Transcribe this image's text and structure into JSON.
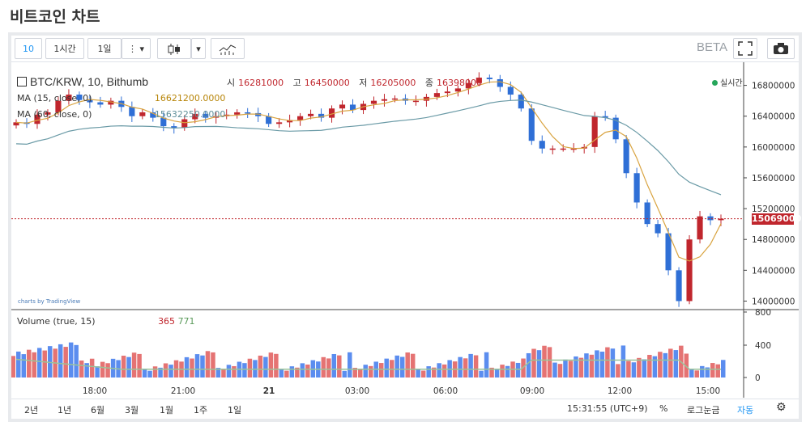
{
  "page": {
    "title": "비트코인 차트"
  },
  "toolbar": {
    "interval": "10",
    "range_1h": "1시간",
    "range_1d": "1일",
    "beta": "BETA"
  },
  "legend": {
    "symbol": "BTC/KRW, 10, Bithumb",
    "open_label": "시",
    "open": "16281000",
    "high_label": "고",
    "high": "16450000",
    "low_label": "저",
    "low": "16205000",
    "close_label": "종",
    "close": "16398000",
    "ma15": "MA (15, close, 0)",
    "ma15_value": "16621200.0000",
    "ma60": "MA (60, close, 0)",
    "ma60_value": "15632250.0000",
    "live": "실시간",
    "volume": "Volume (true, 15)",
    "vol_a": "365",
    "vol_b": "771",
    "tv": "charts by TradingView"
  },
  "colors": {
    "up": "#c0262d",
    "down": "#2f6fd6",
    "ma15": "#d9a441",
    "ma60": "#6a9aa6",
    "vol_up": "#e57373",
    "vol_down": "#5b8def",
    "vol_ma": "#9ac39a"
  },
  "footer": {
    "ranges": [
      "2년",
      "1년",
      "6월",
      "3월",
      "1월",
      "1주",
      "1일"
    ],
    "time": "15:31:55 (UTC+9)",
    "percent": "%",
    "log": "로그눈금",
    "auto": "자동"
  },
  "chart_data": {
    "type": "candlestick",
    "price_axis": {
      "ticks": [
        "16800000",
        "16400000",
        "16000000",
        "15600000",
        "15200000",
        "14800000",
        "14400000",
        "14000000"
      ],
      "ylim": [
        13900000,
        17100000
      ]
    },
    "last_price": "15069000",
    "time_axis": [
      "18:00",
      "21:00",
      "21",
      "03:00",
      "06:00",
      "09:00",
      "12:00",
      "15:00"
    ],
    "volume_axis": [
      "800",
      "400",
      "0"
    ],
    "close_series": [
      16320000,
      16300000,
      16420000,
      16450000,
      16600000,
      16680000,
      16610000,
      16580000,
      16550000,
      16600000,
      16520000,
      16400000,
      16450000,
      16380000,
      16270000,
      16250000,
      16360000,
      16430000,
      16380000,
      16400000,
      16420000,
      16450000,
      16440000,
      16400000,
      16300000,
      16320000,
      16350000,
      16400000,
      16430000,
      16380000,
      16500000,
      16550000,
      16480000,
      16560000,
      16600000,
      16620000,
      16630000,
      16600000,
      16600000,
      16650000,
      16700000,
      16720000,
      16760000,
      16830000,
      16900000,
      16880000,
      16780000,
      16680000,
      16500000,
      16080000,
      15980000,
      15980000,
      15980000,
      15980000,
      16000000,
      16400000,
      16380000,
      16100000,
      15660000,
      15280000,
      15000000,
      14880000,
      14400000,
      14000000,
      14800000,
      15100000,
      15050000,
      15069000
    ]
  }
}
